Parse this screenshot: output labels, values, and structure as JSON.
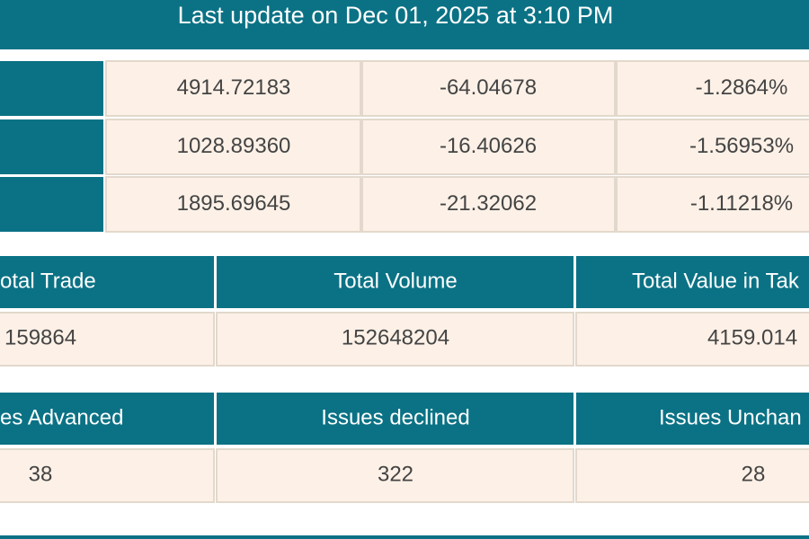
{
  "header": {
    "title": "Last update on Dec 01, 2025 at 3:10 PM"
  },
  "index_table": {
    "rows": [
      [
        "4914.72183",
        "-64.04678",
        "-1.2864%"
      ],
      [
        "1028.89360",
        "-16.40626",
        "-1.56953%"
      ],
      [
        "1895.69645",
        "-21.32062",
        "-1.11218%"
      ]
    ]
  },
  "summary_tables": [
    {
      "headers": [
        "otal Trade",
        "Total Volume",
        "Total Value in Tak"
      ],
      "values": [
        "159864",
        "152648204",
        "4159.014"
      ]
    },
    {
      "headers": [
        "es Advanced",
        "Issues declined",
        "Issues Unchan"
      ],
      "values": [
        "38",
        "322",
        "28"
      ]
    }
  ]
}
